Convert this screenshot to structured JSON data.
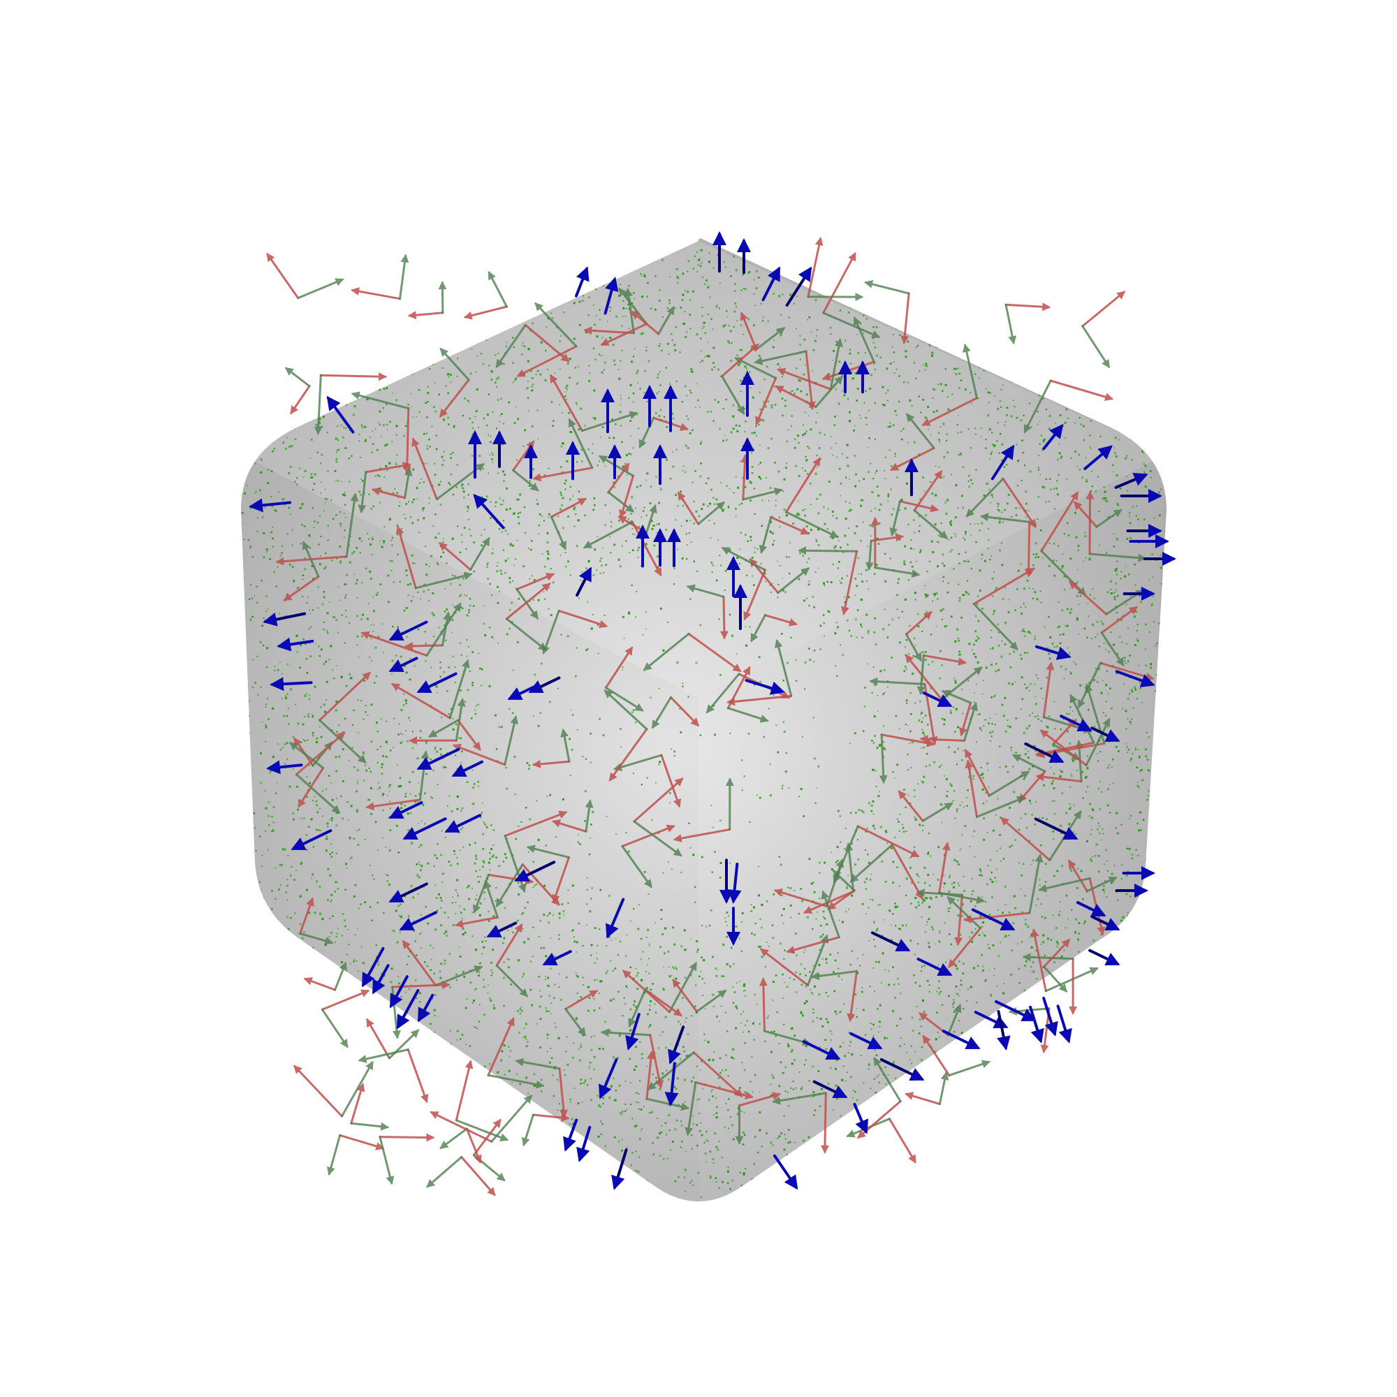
{
  "scene": {
    "background": "#ffffff",
    "surface_color": "#c8c8c8",
    "surface_highlight": "#f2f2f2",
    "point_color": "#1f9a0a",
    "normal_arrow_color": "#0a0ab4",
    "tangent1_arrow_color": "#c0504d",
    "tangent2_arrow_color": "#4f7f4f",
    "shape": "rounded-cube",
    "glyphs": [
      "point-cloud",
      "normal-arrows",
      "tangent-arrows"
    ]
  }
}
